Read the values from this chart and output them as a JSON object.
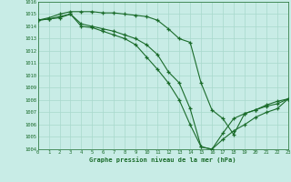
{
  "title": "Graphe pression niveau de la mer (hPa)",
  "bg_color": "#c8ece6",
  "grid_color": "#a8d8cc",
  "line_color": "#1a6b2a",
  "ylim": [
    1004,
    1016
  ],
  "xlim": [
    0,
    23
  ],
  "yticks": [
    1004,
    1005,
    1006,
    1007,
    1008,
    1009,
    1010,
    1011,
    1012,
    1013,
    1014,
    1015,
    1016
  ],
  "xticks": [
    0,
    1,
    2,
    3,
    4,
    5,
    6,
    7,
    8,
    9,
    10,
    11,
    12,
    13,
    14,
    15,
    16,
    17,
    18,
    19,
    20,
    21,
    22,
    23
  ],
  "line1_x": [
    0,
    1,
    2,
    3,
    4,
    5,
    6,
    7,
    8,
    9,
    10,
    11,
    12,
    13,
    14,
    15,
    16,
    17,
    18,
    19,
    20,
    21,
    22,
    23
  ],
  "line1_y": [
    1014.5,
    1014.7,
    1015.0,
    1015.2,
    1015.2,
    1015.2,
    1015.1,
    1015.1,
    1015.0,
    1014.9,
    1014.8,
    1014.5,
    1013.8,
    1013.0,
    1012.7,
    1009.4,
    1007.2,
    1006.5,
    1005.2,
    1006.9,
    1007.2,
    1007.6,
    1007.9,
    1008.1
  ],
  "line2_x": [
    0,
    1,
    2,
    3,
    4,
    5,
    6,
    7,
    8,
    9,
    10,
    11,
    12,
    13,
    14,
    15,
    16,
    17,
    18,
    19,
    20,
    21,
    22,
    23
  ],
  "line2_y": [
    1014.5,
    1014.6,
    1014.8,
    1015.0,
    1014.2,
    1014.0,
    1013.8,
    1013.6,
    1013.3,
    1013.0,
    1012.5,
    1011.7,
    1010.3,
    1009.4,
    1007.3,
    1004.2,
    1004.0,
    1005.3,
    1006.5,
    1006.9,
    1007.2,
    1007.5,
    1007.7,
    1008.1
  ],
  "line3_x": [
    0,
    1,
    2,
    3,
    4,
    5,
    6,
    7,
    8,
    9,
    10,
    11,
    12,
    13,
    14,
    15,
    16,
    17,
    18,
    19,
    20,
    21,
    22,
    23
  ],
  "line3_y": [
    1014.5,
    1014.6,
    1014.7,
    1015.0,
    1014.0,
    1013.9,
    1013.6,
    1013.3,
    1013.0,
    1012.5,
    1011.5,
    1010.5,
    1009.4,
    1008.0,
    1006.0,
    1004.2,
    1004.0,
    1004.8,
    1005.5,
    1006.0,
    1006.6,
    1007.0,
    1007.3,
    1008.1
  ]
}
